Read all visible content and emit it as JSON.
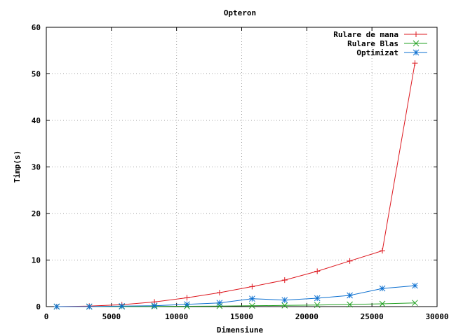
{
  "chart_data": {
    "type": "line",
    "title": "Opteron",
    "xlabel": "Dimensiune",
    "ylabel": "Timp(s)",
    "xlim": [
      0,
      30000
    ],
    "ylim": [
      0,
      60
    ],
    "xticks": [
      0,
      5000,
      10000,
      15000,
      20000,
      25000,
      30000
    ],
    "yticks": [
      0,
      10,
      20,
      30,
      40,
      50,
      60
    ],
    "grid": true,
    "legend_position": "top-right",
    "series": [
      {
        "name": "Rulare de mana",
        "color": "#dd181f",
        "marker": "plus",
        "x": [
          800,
          3300,
          5800,
          8300,
          10800,
          13300,
          15800,
          18300,
          20800,
          23300,
          25800,
          28300
        ],
        "y": [
          0.0,
          0.1,
          0.4,
          1.0,
          1.9,
          3.0,
          4.3,
          5.7,
          7.6,
          9.8,
          12.0,
          52.3
        ]
      },
      {
        "name": "Rulare Blas",
        "color": "#21a021",
        "marker": "x",
        "x": [
          800,
          3300,
          5800,
          8300,
          10800,
          13300,
          15800,
          18300,
          20800,
          23300,
          25800,
          28300
        ],
        "y": [
          0.0,
          0.0,
          0.02,
          0.05,
          0.08,
          0.12,
          0.18,
          0.25,
          0.35,
          0.45,
          0.6,
          0.8
        ]
      },
      {
        "name": "Optimizat",
        "color": "#0b6fd0",
        "marker": "star",
        "x": [
          800,
          3300,
          5800,
          8300,
          10800,
          13300,
          15800,
          18300,
          20800,
          23300,
          25800,
          28300
        ],
        "y": [
          0.0,
          0.0,
          0.1,
          0.2,
          0.5,
          0.8,
          1.7,
          1.4,
          1.8,
          2.4,
          3.9,
          4.5
        ]
      }
    ]
  }
}
